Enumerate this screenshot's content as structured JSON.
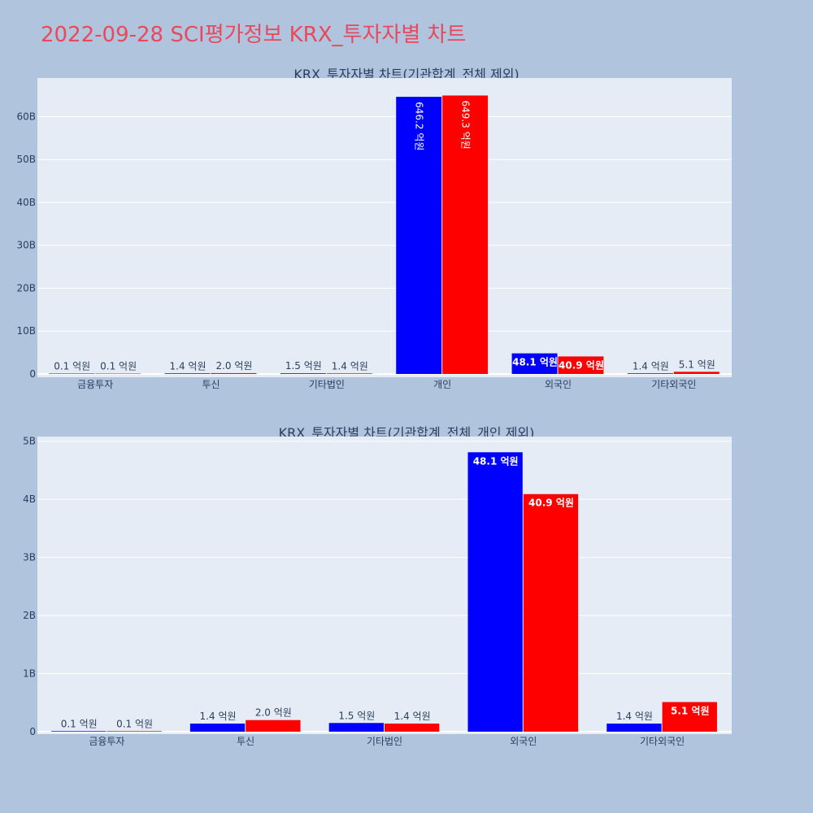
{
  "page": {
    "title": "2022-09-28 SCI평가정보 KRX_투자자별 차트"
  },
  "colors": {
    "background": "#b0c4de",
    "plot_bg": "#e5ecf6",
    "series_a": "#0000ff",
    "series_b": "#ff0000",
    "title": "#e8495c",
    "text": "#2a3f5f"
  },
  "chart_data": [
    {
      "type": "bar",
      "title": "KRX_투자자별 차트(기관합계_전체 제외)",
      "categories": [
        "금융투자",
        "투신",
        "기타법인",
        "개인",
        "외국인",
        "기타외국인"
      ],
      "yticks": [
        "0",
        "10B",
        "20B",
        "30B",
        "40B",
        "50B",
        "60B"
      ],
      "ylim": [
        0,
        69000000000
      ],
      "ystep": 10000000000,
      "grid": true,
      "series": [
        {
          "color": "#0000ff",
          "values": [
            10000000,
            140000000,
            150000000,
            64620000000,
            4810000000,
            140000000
          ],
          "labels": [
            "0.1 억원",
            "1.4 억원",
            "1.5 억원",
            "646.2 억원",
            "48.1 억원",
            "1.4 억원"
          ]
        },
        {
          "color": "#ff0000",
          "values": [
            10000000,
            200000000,
            140000000,
            64930000000,
            4090000000,
            510000000
          ],
          "labels": [
            "0.1 억원",
            "2.0 억원",
            "1.4 억원",
            "649.3 억원",
            "40.9 억원",
            "5.1 억원"
          ]
        }
      ]
    },
    {
      "type": "bar",
      "title": "KRX_투자자별 차트(기관합계_전체_개인 제외)",
      "categories": [
        "금융투자",
        "투신",
        "기타법인",
        "외국인",
        "기타외국인"
      ],
      "yticks": [
        "0",
        "1B",
        "2B",
        "3B",
        "4B",
        "5B"
      ],
      "ylim": [
        0,
        5080000000
      ],
      "ystep": 1000000000,
      "grid": true,
      "series": [
        {
          "color": "#0000ff",
          "values": [
            10000000,
            140000000,
            150000000,
            4810000000,
            140000000
          ],
          "labels": [
            "0.1 억원",
            "1.4 억원",
            "1.5 억원",
            "48.1 억원",
            "1.4 억원"
          ]
        },
        {
          "color": "#ff0000",
          "values": [
            10000000,
            200000000,
            140000000,
            4090000000,
            510000000
          ],
          "labels": [
            "0.1 억원",
            "2.0 억원",
            "1.4 억원",
            "40.9 억원",
            "5.1 억원"
          ]
        }
      ]
    }
  ]
}
